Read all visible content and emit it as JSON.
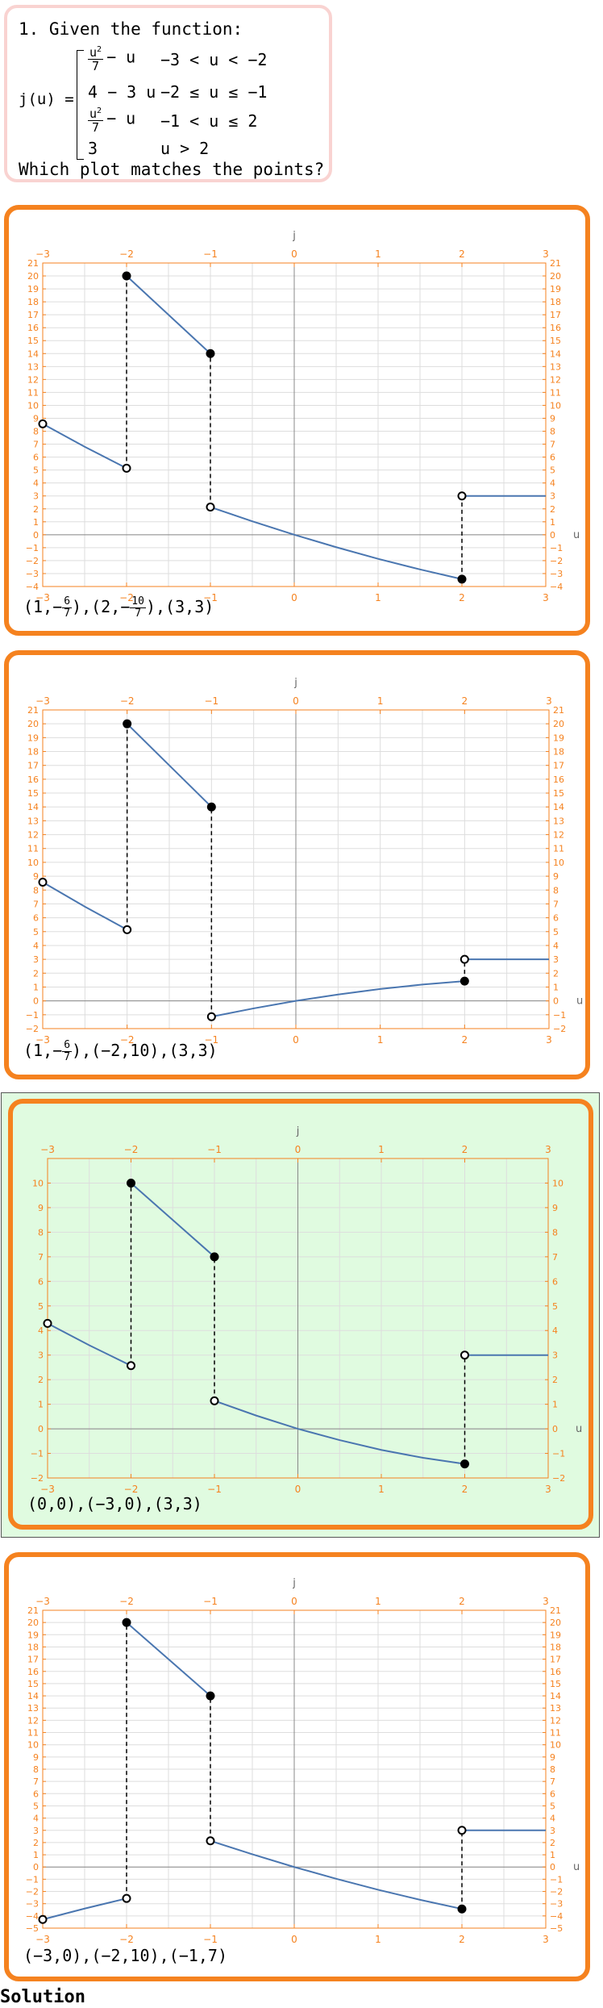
{
  "question": {
    "number_text": "1. Given the function:",
    "lhs": "j(u) =",
    "cases": [
      {
        "num": "u",
        "den": "7",
        "rest": "− u",
        "cond": "−3 < u < −2"
      },
      {
        "expr": "4 − 3 u",
        "cond": "−2 ≤ u ≤ −1"
      },
      {
        "num": "u",
        "den": "7",
        "rest": "− u",
        "cond": "−1 < u ≤ 2"
      },
      {
        "expr": "3",
        "cond": "u > 2"
      }
    ],
    "prompt": "Which plot matches the points?"
  },
  "solution_label": "Solution",
  "colors": {
    "accent": "#f5821f",
    "line": "#4a76b0",
    "correct_bg": "#e0fbe0",
    "question_border": "#f9d3d1"
  },
  "chart_data": [
    {
      "type": "line",
      "xlabel": "u",
      "ylabel": "j",
      "xlim": [
        -3,
        3
      ],
      "ylim": [
        -4,
        21
      ],
      "xticks": [
        -3,
        -2,
        -1,
        0,
        1,
        2,
        3
      ],
      "yticks": [
        -4,
        -3,
        -2,
        -1,
        0,
        1,
        2,
        3,
        4,
        5,
        6,
        7,
        8,
        9,
        10,
        11,
        12,
        13,
        14,
        15,
        16,
        17,
        18,
        19,
        20,
        21
      ],
      "series": [
        {
          "x": [
            -3,
            -2.5,
            -2
          ],
          "y": [
            8.57,
            6.8,
            5.14
          ]
        },
        {
          "x": [
            -2,
            -1
          ],
          "y": [
            20,
            14
          ]
        },
        {
          "x": [
            -1,
            -0.5,
            0,
            0.5,
            1,
            1.5,
            2
          ],
          "y": [
            2.14,
            1.04,
            0,
            -0.96,
            -1.86,
            -2.68,
            -3.43
          ]
        },
        {
          "x": [
            2,
            3
          ],
          "y": [
            3,
            3
          ]
        }
      ],
      "dashed": [
        {
          "x": -2,
          "y1": 5.14,
          "y2": 20
        },
        {
          "x": -1,
          "y1": 2.14,
          "y2": 14
        },
        {
          "x": 2,
          "y1": -3.43,
          "y2": 3
        }
      ],
      "open_points": [
        [
          -3,
          8.57
        ],
        [
          -2,
          5.14
        ],
        [
          -1,
          2.14
        ],
        [
          2,
          3
        ]
      ],
      "closed_points": [
        [
          -2,
          20
        ],
        [
          -1,
          14
        ],
        [
          2,
          -3.43
        ]
      ],
      "points_label": [
        [
          "1",
          {
            "sign": "-",
            "num": "6",
            "den": "7"
          }
        ],
        [
          "2",
          {
            "sign": "-",
            "num": "10",
            "den": "7"
          }
        ],
        [
          "3",
          "3"
        ]
      ]
    },
    {
      "type": "line",
      "xlabel": "u",
      "ylabel": "j",
      "xlim": [
        -3,
        3
      ],
      "ylim": [
        -2,
        21
      ],
      "xticks": [
        -3,
        -2,
        -1,
        0,
        1,
        2,
        3
      ],
      "yticks": [
        -2,
        -1,
        0,
        1,
        2,
        3,
        4,
        5,
        6,
        7,
        8,
        9,
        10,
        11,
        12,
        13,
        14,
        15,
        16,
        17,
        18,
        19,
        20,
        21
      ],
      "series": [
        {
          "x": [
            -3,
            -2.5,
            -2
          ],
          "y": [
            8.57,
            6.8,
            5.14
          ]
        },
        {
          "x": [
            -2,
            -1
          ],
          "y": [
            20,
            14
          ]
        },
        {
          "x": [
            -1,
            -0.5,
            0,
            0.5,
            1,
            1.5,
            2
          ],
          "y": [
            -1.14,
            -0.54,
            0,
            0.46,
            0.86,
            1.18,
            1.43
          ]
        },
        {
          "x": [
            2,
            3
          ],
          "y": [
            3,
            3
          ]
        }
      ],
      "dashed": [
        {
          "x": -2,
          "y1": 5.14,
          "y2": 20
        },
        {
          "x": -1,
          "y1": -1.14,
          "y2": 14
        },
        {
          "x": 2,
          "y1": 1.43,
          "y2": 3
        }
      ],
      "open_points": [
        [
          -3,
          8.57
        ],
        [
          -2,
          5.14
        ],
        [
          -1,
          -1.14
        ],
        [
          2,
          3
        ]
      ],
      "closed_points": [
        [
          -2,
          20
        ],
        [
          -1,
          14
        ],
        [
          2,
          1.43
        ]
      ],
      "points_label": [
        [
          "1",
          {
            "sign": "-",
            "num": "6",
            "den": "7"
          }
        ],
        [
          "-2",
          "10"
        ],
        [
          "3",
          "3"
        ]
      ]
    },
    {
      "type": "line",
      "xlabel": "u",
      "ylabel": "j",
      "xlim": [
        -3,
        3
      ],
      "ylim": [
        -2,
        11
      ],
      "xticks": [
        -3,
        -2,
        -1,
        0,
        1,
        2,
        3
      ],
      "yticks": [
        -2,
        -1,
        0,
        1,
        2,
        3,
        4,
        5,
        6,
        7,
        8,
        9,
        10
      ],
      "series": [
        {
          "x": [
            -3,
            -2.5,
            -2
          ],
          "y": [
            4.29,
            3.4,
            2.57
          ]
        },
        {
          "x": [
            -2,
            -1
          ],
          "y": [
            10,
            7
          ]
        },
        {
          "x": [
            -1,
            -0.5,
            0,
            0.5,
            1,
            1.5,
            2
          ],
          "y": [
            1.14,
            0.54,
            0,
            -0.46,
            -0.86,
            -1.18,
            -1.43
          ]
        },
        {
          "x": [
            2,
            3
          ],
          "y": [
            3,
            3
          ]
        }
      ],
      "dashed": [
        {
          "x": -2,
          "y1": 2.57,
          "y2": 10
        },
        {
          "x": -1,
          "y1": 1.14,
          "y2": 7
        },
        {
          "x": 2,
          "y1": -1.43,
          "y2": 3
        }
      ],
      "open_points": [
        [
          -3,
          4.29
        ],
        [
          -2,
          2.57
        ],
        [
          -1,
          1.14
        ],
        [
          2,
          3
        ]
      ],
      "closed_points": [
        [
          -2,
          10
        ],
        [
          -1,
          7
        ],
        [
          2,
          -1.43
        ]
      ],
      "points_label": [
        [
          "0",
          "0"
        ],
        [
          "-3",
          "0"
        ],
        [
          "3",
          "3"
        ]
      ]
    },
    {
      "type": "line",
      "xlabel": "u",
      "ylabel": "j",
      "xlim": [
        -3,
        3
      ],
      "ylim": [
        -5,
        21
      ],
      "xticks": [
        -3,
        -2,
        -1,
        0,
        1,
        2,
        3
      ],
      "yticks": [
        -5,
        -4,
        -3,
        -2,
        -1,
        0,
        1,
        2,
        3,
        4,
        5,
        6,
        7,
        8,
        9,
        10,
        11,
        12,
        13,
        14,
        15,
        16,
        17,
        18,
        19,
        20,
        21
      ],
      "series": [
        {
          "x": [
            -3,
            -2.5,
            -2
          ],
          "y": [
            -4.29,
            -3.4,
            -2.57
          ]
        },
        {
          "x": [
            -2,
            -1
          ],
          "y": [
            20,
            14
          ]
        },
        {
          "x": [
            -1,
            -0.5,
            0,
            0.5,
            1,
            1.5,
            2
          ],
          "y": [
            2.14,
            1.04,
            0,
            -0.96,
            -1.86,
            -2.68,
            -3.43
          ]
        },
        {
          "x": [
            2,
            3
          ],
          "y": [
            3,
            3
          ]
        }
      ],
      "dashed": [
        {
          "x": -2,
          "y1": -2.57,
          "y2": 20
        },
        {
          "x": -1,
          "y1": 2.14,
          "y2": 14
        },
        {
          "x": 2,
          "y1": -3.43,
          "y2": 3
        }
      ],
      "open_points": [
        [
          -3,
          -4.29
        ],
        [
          -2,
          -2.57
        ],
        [
          -1,
          2.14
        ],
        [
          2,
          3
        ]
      ],
      "closed_points": [
        [
          -2,
          20
        ],
        [
          -1,
          14
        ],
        [
          2,
          -3.43
        ]
      ],
      "points_label": [
        [
          "-3",
          "0"
        ],
        [
          "-2",
          "10"
        ],
        [
          "-1",
          "7"
        ]
      ]
    }
  ]
}
